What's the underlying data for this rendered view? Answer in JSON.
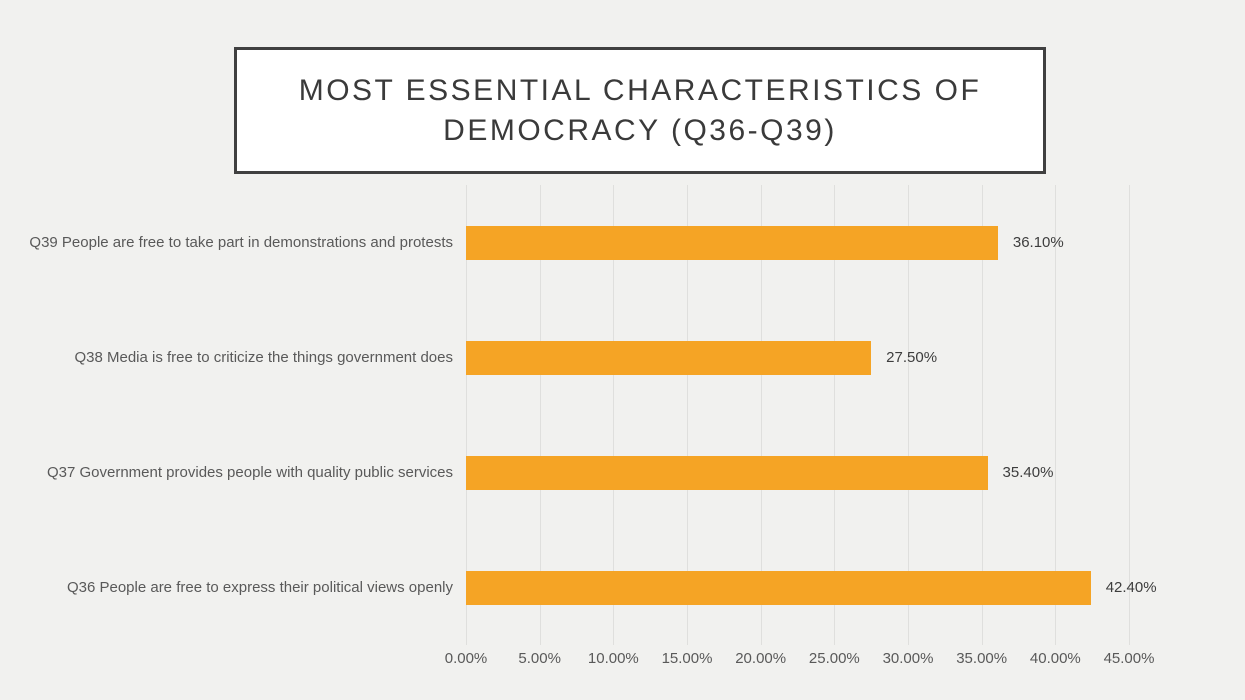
{
  "page": {
    "background_color": "#F1F1EF"
  },
  "title": {
    "text": "MOST ESSENTIAL CHARACTERISTICS OF DEMOCRACY (Q36-Q39)"
  },
  "chart_data": {
    "type": "bar",
    "orientation": "horizontal",
    "title": "MOST ESSENTIAL CHARACTERISTICS OF DEMOCRACY (Q36-Q39)",
    "categories": [
      "Q39 People are free to take part in demonstrations and protests",
      "Q38 Media is free to criticize the things government does",
      "Q37 Government provides people with quality public services",
      "Q36 People are free to express their political views openly"
    ],
    "values": [
      36.1,
      27.5,
      35.4,
      42.4
    ],
    "value_labels": [
      "36.10%",
      "27.50%",
      "35.40%",
      "42.40%"
    ],
    "x_ticks": [
      "0.00%",
      "5.00%",
      "10.00%",
      "15.00%",
      "20.00%",
      "25.00%",
      "30.00%",
      "35.00%",
      "40.00%",
      "45.00%"
    ],
    "x_tick_values": [
      0,
      5,
      10,
      15,
      20,
      25,
      30,
      35,
      40,
      45
    ],
    "xlim": [
      0,
      45
    ],
    "xlabel": "",
    "ylabel": "",
    "grid": true,
    "legend": false,
    "bar_color": "#F5A425",
    "gridline_color": "#DFDFDD"
  }
}
